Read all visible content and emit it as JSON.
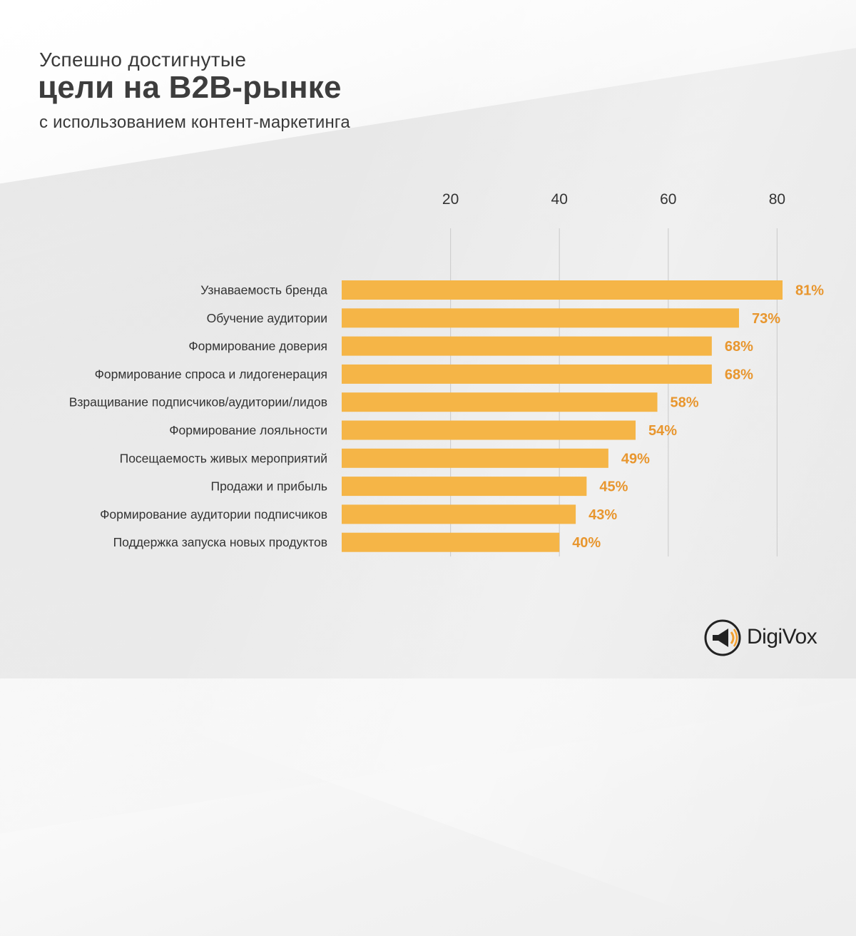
{
  "title": {
    "line1": "Успешно достигнутые",
    "line2": "цели на B2B-рынке",
    "line3": "с использованием контент-маркетинга"
  },
  "chart_data": {
    "type": "bar",
    "orientation": "horizontal",
    "categories": [
      "Узнаваемость бренда",
      "Обучение аудитории",
      "Формирование доверия",
      "Формирование спроса и лидогенерация",
      "Взращивание подписчиков/аудитории/лидов",
      "Формирование лояльности",
      "Посещаемость живых мероприятий",
      "Продажи и прибыль",
      "Формирование аудитории подписчиков",
      "Поддержка запуска новых продуктов"
    ],
    "values": [
      81,
      73,
      68,
      68,
      58,
      54,
      49,
      45,
      43,
      40
    ],
    "value_labels": [
      "81%",
      "73%",
      "68%",
      "68%",
      "58%",
      "54%",
      "49%",
      "45%",
      "43%",
      "40%"
    ],
    "x_ticks": [
      20,
      40,
      60,
      80
    ],
    "xlim": [
      0,
      88
    ],
    "grid": true,
    "colors": {
      "bar": "#f5b547",
      "value_label": "#e8962e",
      "grid": "#cfcfcf",
      "text": "#333333"
    }
  },
  "logo": {
    "text": "DigiVox",
    "icon": "megaphone-icon",
    "colors": {
      "ring": "#222222",
      "accent": "#f2a031"
    }
  }
}
